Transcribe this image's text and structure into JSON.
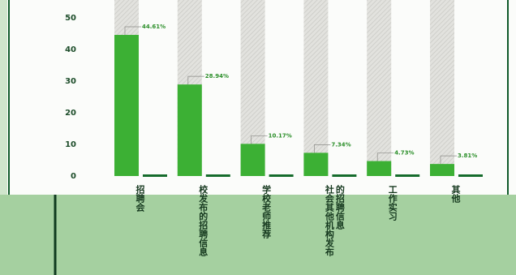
{
  "chart_data": {
    "type": "bar",
    "categories": [
      "招聘会",
      "校发布的招聘信息",
      "学校老师推荐",
      "社会其他机构发布的招聘信息",
      "工作实习",
      "其他"
    ],
    "values": [
      44.61,
      28.94,
      10.17,
      7.34,
      4.73,
      3.81
    ],
    "value_labels": [
      "44.61%",
      "28.94%",
      "10.17%",
      "7.34%",
      "4.73%",
      "3.81%"
    ],
    "color": "#3cb034",
    "background_color": "#e2e2de",
    "ylim": [
      0,
      50
    ],
    "yticks": [
      0,
      10,
      20,
      30,
      40,
      50
    ]
  }
}
